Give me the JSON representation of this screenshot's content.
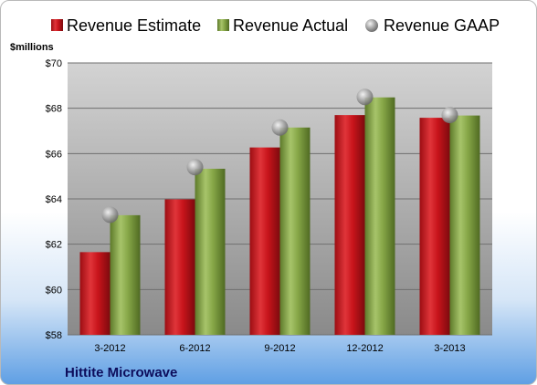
{
  "chart_data": {
    "type": "bar",
    "title": "",
    "ylabel": "$millions",
    "xlabel": "",
    "categories": [
      "3-2012",
      "6-2012",
      "9-2012",
      "12-2012",
      "3-2013"
    ],
    "ylim": [
      58,
      70
    ],
    "yticks": [
      58,
      60,
      62,
      64,
      66,
      68,
      70
    ],
    "ytick_labels": [
      "$58",
      "$60",
      "$62",
      "$64",
      "$66",
      "$68",
      "$70"
    ],
    "series": [
      {
        "name": "Revenue Estimate",
        "kind": "bar",
        "color": "#c8141b",
        "values": [
          61.65,
          63.98,
          66.27,
          67.7,
          67.58
        ]
      },
      {
        "name": "Revenue Actual",
        "kind": "bar",
        "color": "#7a9a3c",
        "values": [
          63.28,
          65.33,
          67.15,
          68.48,
          67.68
        ]
      },
      {
        "name": "Revenue GAAP",
        "kind": "marker",
        "color": "#9a9a9a",
        "values": [
          63.3,
          65.4,
          67.15,
          68.5,
          67.7
        ]
      }
    ],
    "grid": true,
    "legend": "top"
  },
  "company": "Hittite Microwave"
}
